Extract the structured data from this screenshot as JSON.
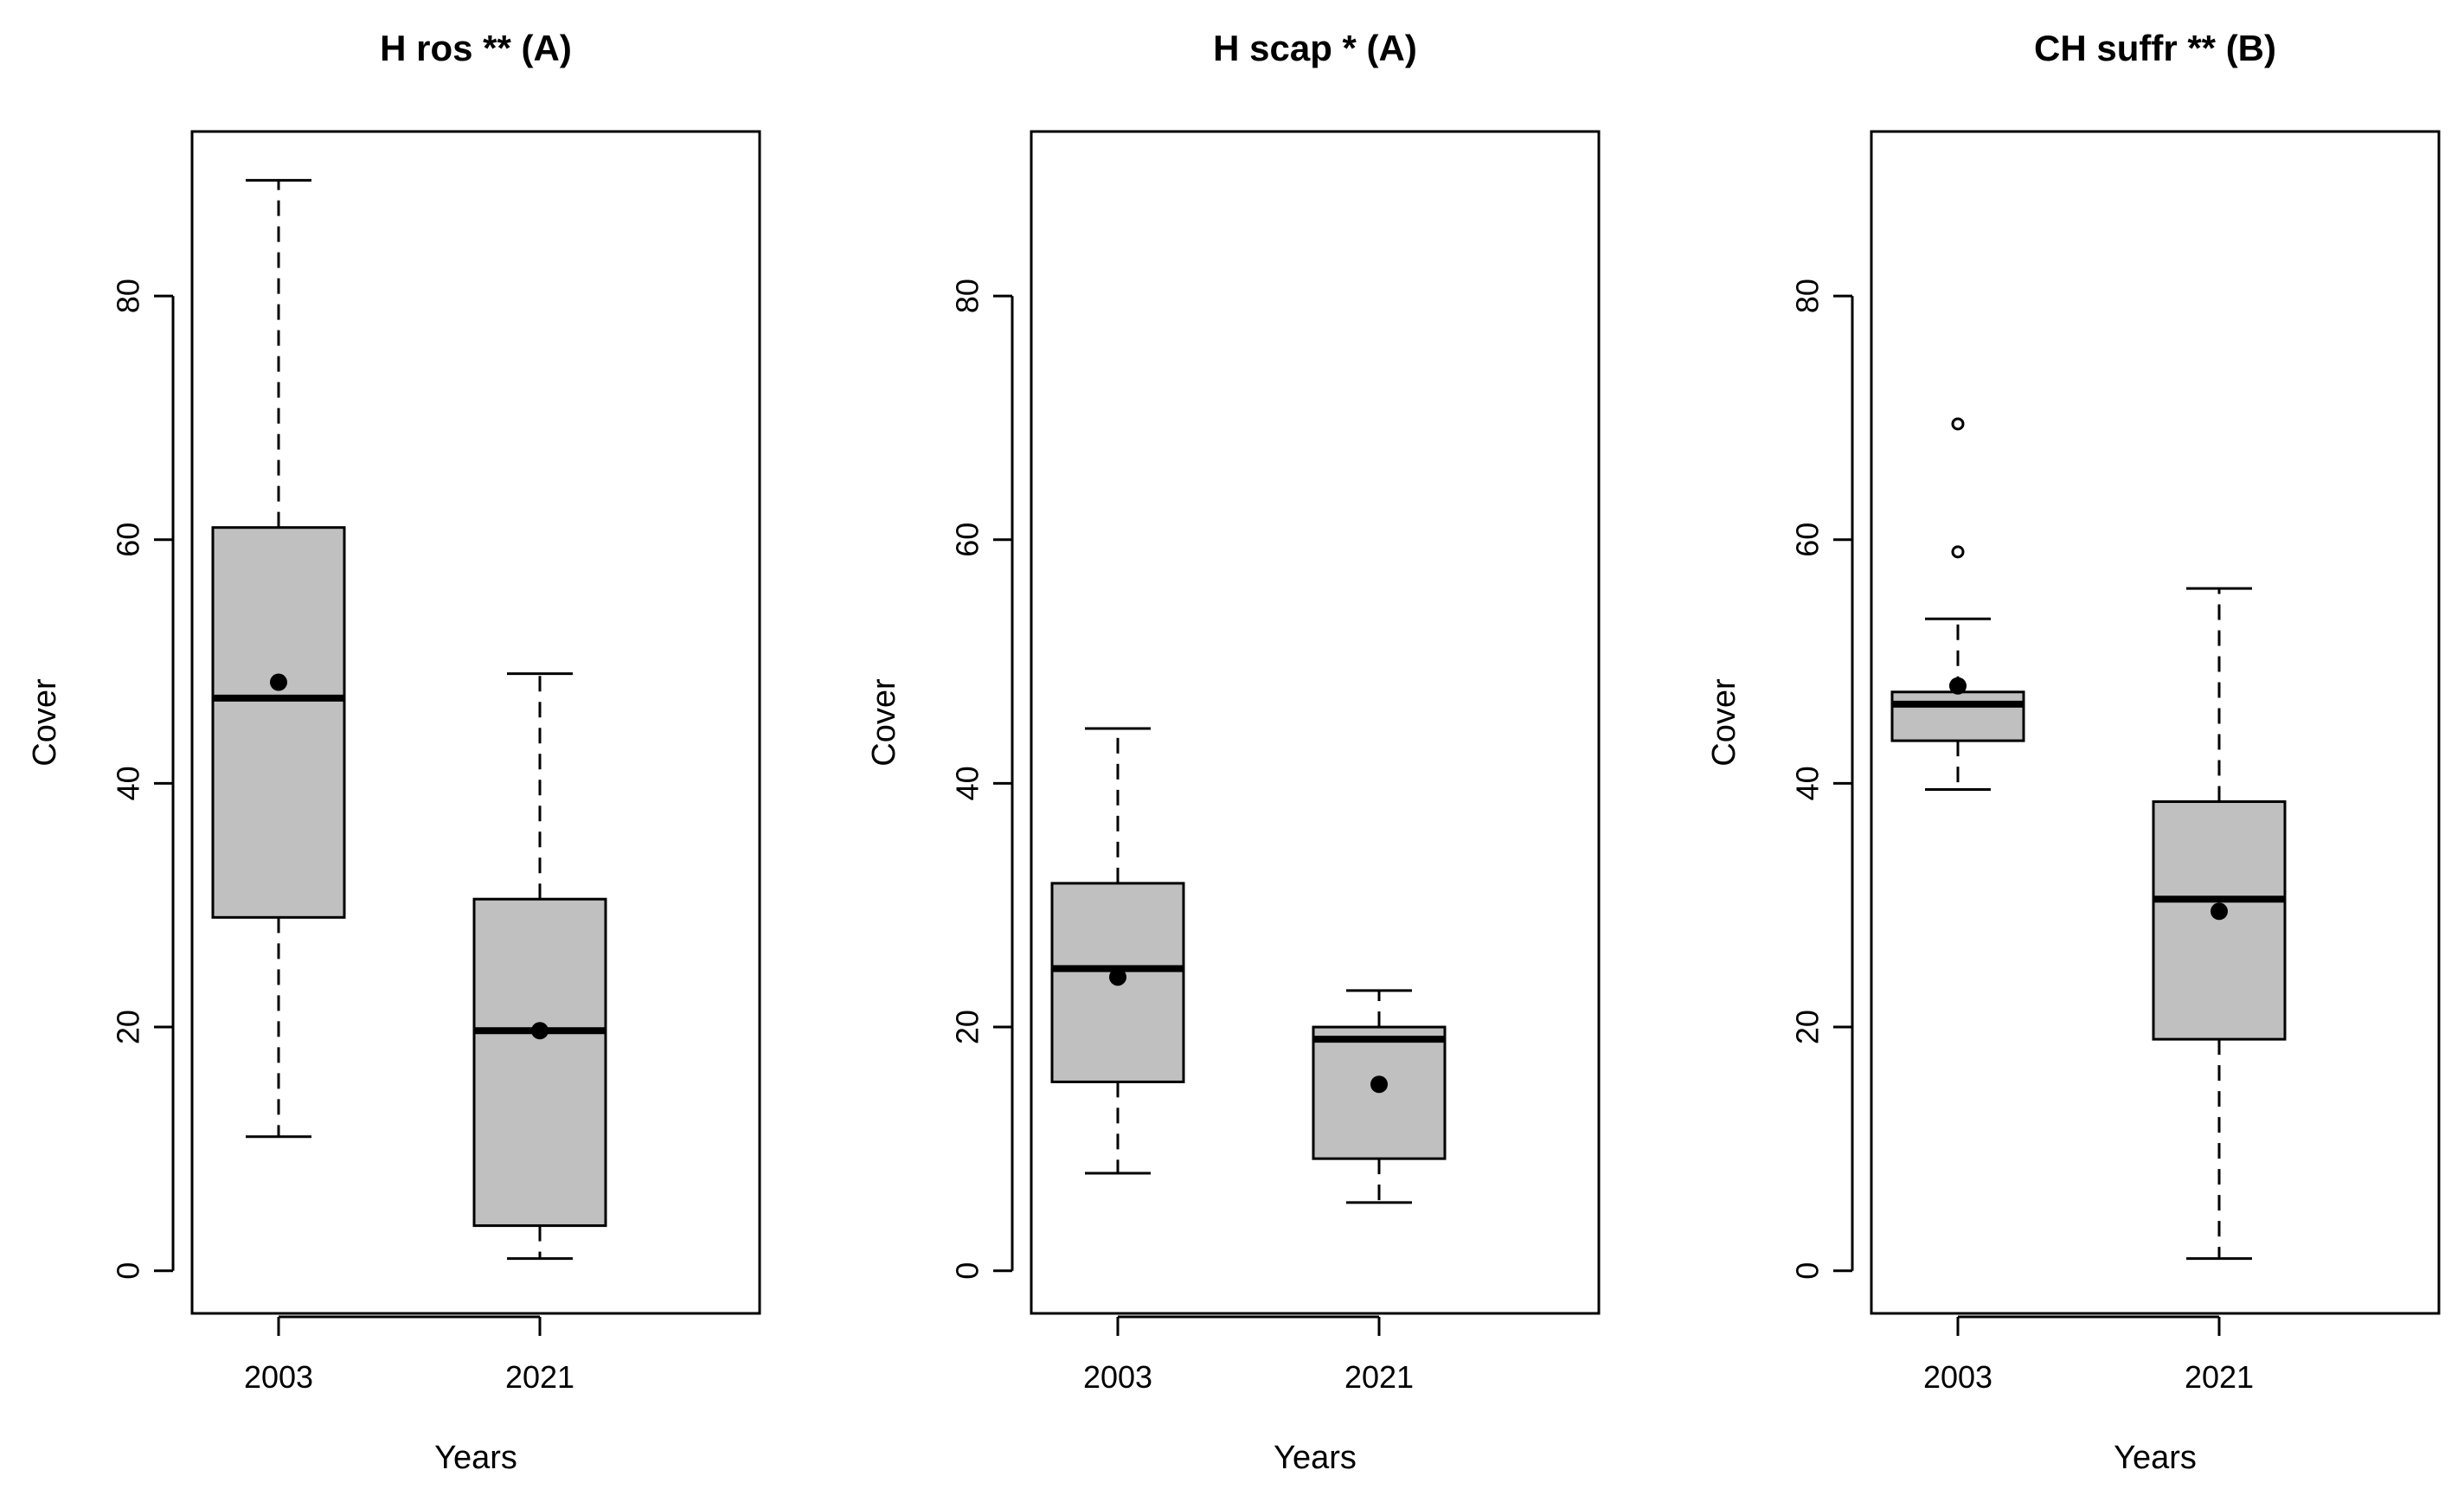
{
  "colors": {
    "box_fill": "#c0c0c0",
    "line": "#000000",
    "background": "#ffffff"
  },
  "chart_data": [
    {
      "type": "boxplot",
      "title": "H ros ** (A)",
      "xlabel": "Years",
      "ylabel": "Cover",
      "ylim": [
        -3.5,
        93.5
      ],
      "yticks": [
        0,
        20,
        40,
        60,
        80
      ],
      "categories": [
        "2003",
        "2021"
      ],
      "boxes": [
        {
          "category": "2003",
          "whisker_low": 11,
          "q1": 29,
          "median": 47,
          "q3": 61,
          "whisker_high": 89.5,
          "mean": 48.3,
          "outliers": []
        },
        {
          "category": "2021",
          "whisker_low": 1,
          "q1": 3.7,
          "median": 19.7,
          "q3": 30.5,
          "whisker_high": 49,
          "mean": 19.7,
          "outliers": []
        }
      ]
    },
    {
      "type": "boxplot",
      "title": "H scap * (A)",
      "xlabel": "Years",
      "ylabel": "Cover",
      "ylim": [
        -3.5,
        93.5
      ],
      "yticks": [
        0,
        20,
        40,
        60,
        80
      ],
      "categories": [
        "2003",
        "2021"
      ],
      "boxes": [
        {
          "category": "2003",
          "whisker_low": 8,
          "q1": 15.5,
          "median": 24.8,
          "q3": 31.8,
          "whisker_high": 44.5,
          "mean": 24.1,
          "outliers": []
        },
        {
          "category": "2021",
          "whisker_low": 5.6,
          "q1": 9.2,
          "median": 19,
          "q3": 20,
          "whisker_high": 23,
          "mean": 15.3,
          "outliers": []
        }
      ]
    },
    {
      "type": "boxplot",
      "title": "CH suffr ** (B)",
      "xlabel": "Years",
      "ylabel": "Cover",
      "ylim": [
        -3.5,
        93.5
      ],
      "yticks": [
        0,
        20,
        40,
        60,
        80
      ],
      "categories": [
        "2003",
        "2021"
      ],
      "boxes": [
        {
          "category": "2003",
          "whisker_low": 39.5,
          "q1": 43.5,
          "median": 46.5,
          "q3": 47.5,
          "whisker_high": 53.5,
          "mean": 48,
          "outliers": [
            59,
            69.5
          ]
        },
        {
          "category": "2021",
          "whisker_low": 1,
          "q1": 19,
          "median": 30.5,
          "q3": 38.5,
          "whisker_high": 56,
          "mean": 29.5,
          "outliers": []
        }
      ]
    }
  ]
}
